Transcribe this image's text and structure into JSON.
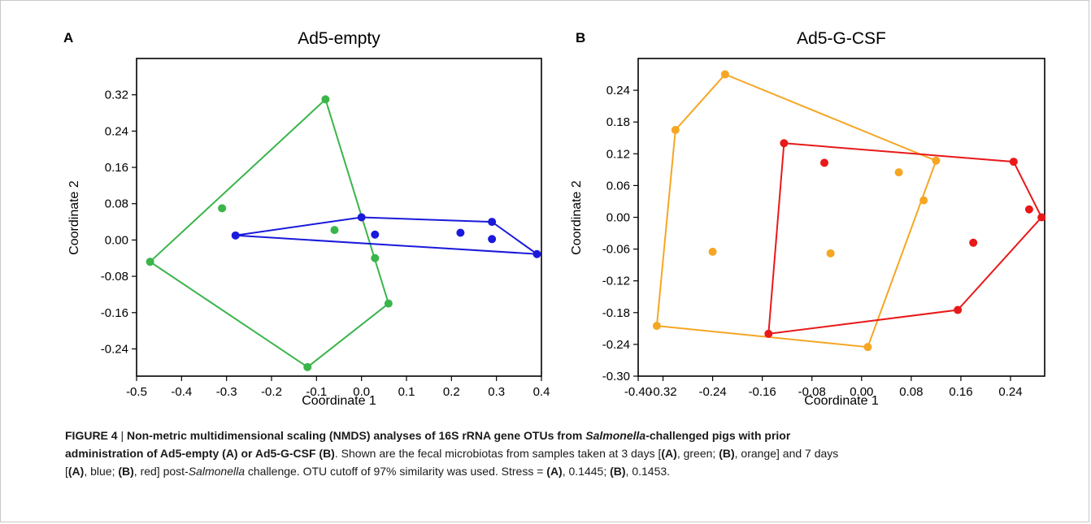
{
  "caption": {
    "line1_bold_a": "FIGURE 4",
    "line1_sep": " | ",
    "line1_bold_b": "Non-metric multidimensional scaling (NMDS) analyses of 16S rRNA gene OTUs from ",
    "line1_bold_italic": "Salmonella",
    "line1_bold_c": "-challenged pigs with prior",
    "line2_bold": "administration of Ad5-empty (A) or Ad5-G-CSF (B)",
    "line2_rest": ". Shown are the fecal microbiotas from samples taken at 3 days [",
    "line2_a": "(A)",
    "line2_green": ", green; ",
    "line2_b": "(B)",
    "line2_orange": ", orange] and 7 days",
    "line3_start": "[",
    "line3_a": "(A)",
    "line3_blue": ", blue; ",
    "line3_b": "(B)",
    "line3_red": ", red] post-",
    "line3_italic": "Salmonella",
    "line3_rest": " challenge. OTU cutoff of 97% similarity was used. Stress = ",
    "line3_a2": "(A)",
    "line3_mid": ", 0.1445; ",
    "line3_b2": "(B)",
    "line3_end": ", 0.1453."
  },
  "chart_data": [
    {
      "type": "scatter",
      "panel_letter": "A",
      "title": "Ad5-empty",
      "xlabel": "Coordinate 1",
      "ylabel": "Coordinate 2",
      "xlim": [
        -0.5,
        0.4
      ],
      "ylim": [
        -0.3,
        0.4
      ],
      "x_ticks": [
        -0.5,
        -0.4,
        -0.3,
        -0.2,
        -0.1,
        0.0,
        0.1,
        0.2,
        0.3,
        0.4
      ],
      "x_tick_labels": [
        "-0.5",
        "-0.4",
        "-0.3",
        "-0.2",
        "-0.1",
        "0.0",
        "0.1",
        "0.2",
        "0.3",
        "0.4"
      ],
      "y_ticks": [
        -0.24,
        -0.16,
        -0.08,
        0.0,
        0.08,
        0.16,
        0.24,
        0.32
      ],
      "y_tick_labels": [
        "-0.24",
        "-0.16",
        "-0.08",
        "0.00",
        "0.08",
        "0.16",
        "0.24",
        "0.32"
      ],
      "series": [
        {
          "color": "#3ab54a",
          "points": [
            [
              -0.08,
              0.31
            ],
            [
              -0.31,
              0.07
            ],
            [
              -0.06,
              0.022
            ],
            [
              0.03,
              -0.04
            ],
            [
              -0.47,
              -0.048
            ],
            [
              0.06,
              -0.14
            ],
            [
              -0.12,
              -0.28
            ]
          ],
          "hull": [
            [
              -0.08,
              0.31
            ],
            [
              0.06,
              -0.14
            ],
            [
              -0.12,
              -0.28
            ],
            [
              -0.47,
              -0.048
            ]
          ]
        },
        {
          "color": "#1a1adb",
          "points": [
            [
              -0.28,
              0.01
            ],
            [
              0.0,
              0.05
            ],
            [
              0.03,
              0.012
            ],
            [
              0.22,
              0.016
            ],
            [
              0.29,
              0.04
            ],
            [
              0.29,
              0.002
            ],
            [
              0.39,
              -0.031
            ]
          ],
          "hull": [
            [
              -0.28,
              0.01
            ],
            [
              0.0,
              0.05
            ],
            [
              0.29,
              0.04
            ],
            [
              0.39,
              -0.031
            ]
          ]
        }
      ]
    },
    {
      "type": "scatter",
      "panel_letter": "B",
      "title": "Ad5-G-CSF",
      "xlabel": "Coordinate 1",
      "ylabel": "Coordinate 2",
      "xlim": [
        -0.36,
        0.295
      ],
      "ylim": [
        -0.3,
        0.3
      ],
      "x_ticks": [
        -0.4,
        -0.32,
        -0.24,
        -0.16,
        -0.08,
        0.0,
        0.08,
        0.16,
        0.24
      ],
      "x_tick_labels": [
        "-0.40",
        "-0.32",
        "-0.24",
        "-0.16",
        "-0.08",
        "0.00",
        "0.08",
        "0.16",
        "0.24"
      ],
      "y_ticks": [
        -0.3,
        -0.24,
        -0.18,
        -0.12,
        -0.06,
        0.0,
        0.06,
        0.12,
        0.18,
        0.24
      ],
      "y_tick_labels": [
        "-0.30",
        "-0.24",
        "-0.18",
        "-0.12",
        "-0.06",
        "0.00",
        "0.06",
        "0.12",
        "0.18",
        "0.24"
      ],
      "series": [
        {
          "color": "#f5a623",
          "points": [
            [
              -0.22,
              0.27
            ],
            [
              -0.3,
              0.165
            ],
            [
              0.12,
              0.107
            ],
            [
              0.06,
              0.085
            ],
            [
              0.1,
              0.032
            ],
            [
              -0.24,
              -0.065
            ],
            [
              -0.05,
              -0.068
            ],
            [
              -0.33,
              -0.205
            ],
            [
              0.01,
              -0.245
            ]
          ],
          "hull": [
            [
              -0.22,
              0.27
            ],
            [
              0.12,
              0.107
            ],
            [
              0.01,
              -0.245
            ],
            [
              -0.33,
              -0.205
            ],
            [
              -0.3,
              0.165
            ]
          ]
        },
        {
          "color": "#e81919",
          "points": [
            [
              -0.125,
              0.14
            ],
            [
              -0.06,
              0.103
            ],
            [
              0.245,
              0.105
            ],
            [
              0.27,
              0.015
            ],
            [
              0.29,
              0.0
            ],
            [
              0.18,
              -0.048
            ],
            [
              0.155,
              -0.175
            ],
            [
              -0.15,
              -0.22
            ]
          ],
          "hull": [
            [
              -0.125,
              0.14
            ],
            [
              0.245,
              0.105
            ],
            [
              0.29,
              0.0
            ],
            [
              0.155,
              -0.175
            ],
            [
              -0.15,
              -0.22
            ]
          ]
        }
      ]
    }
  ]
}
